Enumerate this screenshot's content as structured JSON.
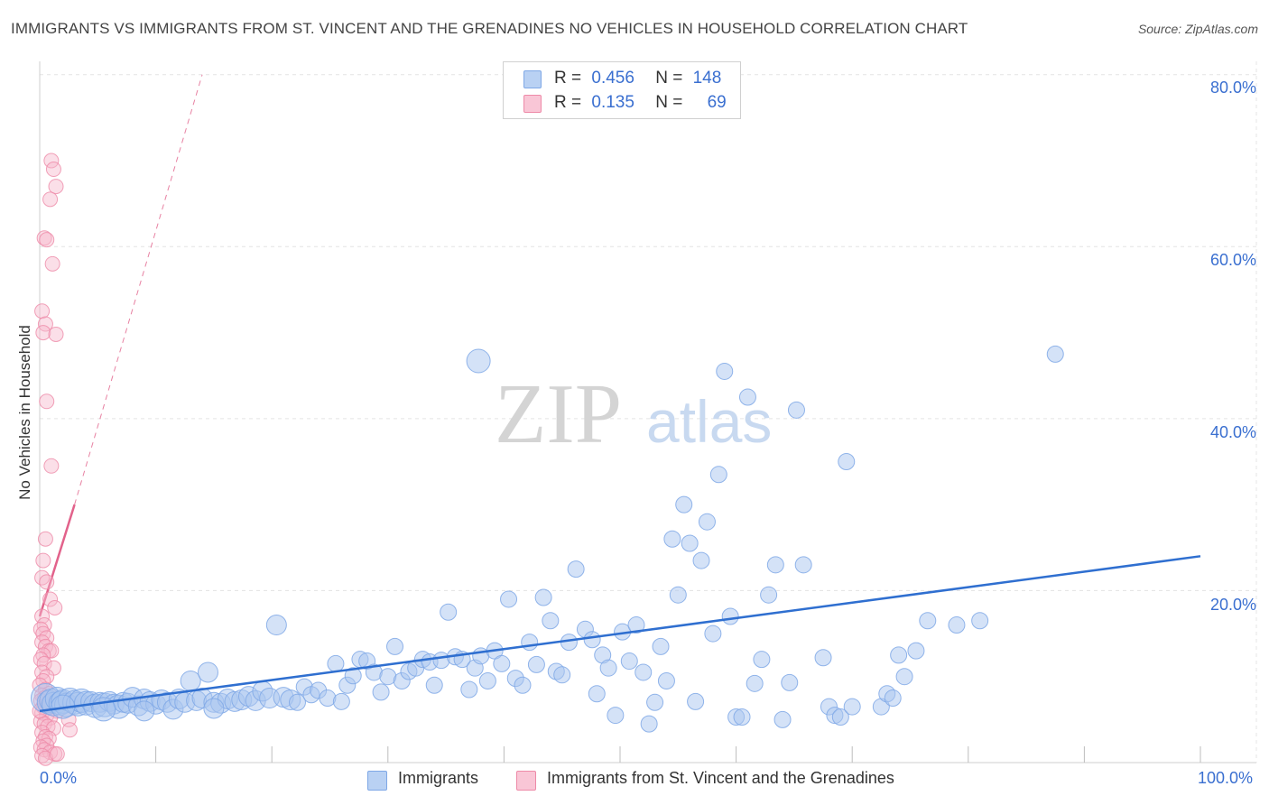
{
  "title": "IMMIGRANTS VS IMMIGRANTS FROM ST. VINCENT AND THE GRENADINES NO VEHICLES IN HOUSEHOLD CORRELATION CHART",
  "source": "Source: ZipAtlas.com",
  "watermark": {
    "zip": "ZIP",
    "atlas": "atlas"
  },
  "legend": {
    "rows": [
      {
        "r_label": "R =",
        "r_value": "0.456",
        "n_label": "N =",
        "n_value": "148"
      },
      {
        "r_label": "R =",
        "r_value": "0.135",
        "n_label": "N =",
        "n_value": "69"
      }
    ]
  },
  "bottom_legend": [
    "Immigrants",
    "Immigrants from St. Vincent and the Grenadines"
  ],
  "colors": {
    "blue_fill": "#a9c6f0",
    "blue_stroke": "#7fa8e6",
    "blue_line": "#2f6fd0",
    "pink_fill": "#f7b9cc",
    "pink_stroke": "#ee8aa8",
    "pink_line": "#e2628b",
    "tick_text": "#3a6fd0",
    "grid": "#e3e3e3"
  },
  "chart_data": {
    "type": "scatter",
    "title": "IMMIGRANTS VS IMMIGRANTS FROM ST. VINCENT AND THE GRENADINES NO VEHICLES IN HOUSEHOLD CORRELATION CHART",
    "xlabel": "",
    "ylabel": "No Vehicles in Household",
    "xlim": [
      0,
      100
    ],
    "ylim": [
      0,
      80
    ],
    "x_tick_labels": [
      "0.0%",
      "100.0%"
    ],
    "y_ticks": [
      20,
      40,
      60,
      80
    ],
    "y_tick_labels": [
      "20.0%",
      "40.0%",
      "60.0%",
      "80.0%"
    ],
    "series": [
      {
        "name": "Immigrants",
        "r": 0.456,
        "n": 148,
        "trend": {
          "x": [
            0,
            100
          ],
          "y": [
            6.0,
            24.0
          ],
          "style": "solid"
        },
        "points": [
          [
            0.5,
            7.5,
            4
          ],
          [
            0.8,
            7.0,
            3
          ],
          [
            1.0,
            7.2,
            3
          ],
          [
            1.2,
            6.8,
            3
          ],
          [
            1.5,
            7.4,
            3
          ],
          [
            1.8,
            6.9,
            3
          ],
          [
            2.0,
            7.1,
            3
          ],
          [
            2.3,
            6.7,
            3
          ],
          [
            2.6,
            7.3,
            3
          ],
          [
            3.0,
            7.0,
            3
          ],
          [
            3.3,
            6.8,
            3
          ],
          [
            3.6,
            7.2,
            3
          ],
          [
            4.0,
            6.9,
            3
          ],
          [
            4.4,
            7.1,
            2
          ],
          [
            4.8,
            6.6,
            3
          ],
          [
            5.2,
            7.0,
            2
          ],
          [
            5.6,
            6.7,
            3
          ],
          [
            6.0,
            7.1,
            2
          ],
          [
            6.4,
            6.8,
            2
          ],
          [
            6.8,
            6.5,
            3
          ],
          [
            7.2,
            7.0,
            2
          ],
          [
            7.6,
            6.9,
            2
          ],
          [
            8.0,
            7.6,
            2
          ],
          [
            8.5,
            6.6,
            2
          ],
          [
            9.0,
            7.4,
            2
          ],
          [
            9.5,
            7.1,
            2
          ],
          [
            10.0,
            6.8,
            2
          ],
          [
            10.5,
            7.3,
            2
          ],
          [
            11.0,
            7.0,
            2
          ],
          [
            11.5,
            6.2,
            2
          ],
          [
            12.0,
            7.4,
            2
          ],
          [
            12.5,
            7.0,
            2
          ],
          [
            13.0,
            9.5,
            2
          ],
          [
            13.5,
            7.2,
            2
          ],
          [
            14.0,
            7.5,
            2
          ],
          [
            14.5,
            10.5,
            2
          ],
          [
            15.0,
            7.0,
            2
          ],
          [
            15.6,
            6.9,
            2
          ],
          [
            16.2,
            7.4,
            2
          ],
          [
            16.8,
            7.1,
            2
          ],
          [
            17.4,
            7.3,
            2
          ],
          [
            18.0,
            7.7,
            2
          ],
          [
            18.6,
            7.2,
            2
          ],
          [
            19.2,
            8.3,
            2
          ],
          [
            19.8,
            7.5,
            2
          ],
          [
            20.4,
            16.0,
            2
          ],
          [
            21.0,
            7.6,
            2
          ],
          [
            21.6,
            7.3,
            2
          ],
          [
            22.2,
            7.0,
            1
          ],
          [
            22.8,
            8.8,
            1
          ],
          [
            23.4,
            7.9,
            1
          ],
          [
            24.0,
            8.4,
            1
          ],
          [
            24.8,
            7.5,
            1
          ],
          [
            25.5,
            11.5,
            1
          ],
          [
            26.0,
            7.1,
            1
          ],
          [
            26.5,
            9.0,
            1
          ],
          [
            27.0,
            10.1,
            1
          ],
          [
            27.6,
            12.0,
            1
          ],
          [
            28.2,
            11.8,
            1
          ],
          [
            28.8,
            10.5,
            1
          ],
          [
            29.4,
            8.2,
            1
          ],
          [
            30.0,
            10.0,
            1
          ],
          [
            30.6,
            13.5,
            1
          ],
          [
            31.2,
            9.5,
            1
          ],
          [
            31.8,
            10.6,
            1
          ],
          [
            32.4,
            11.0,
            1
          ],
          [
            33.0,
            12.0,
            1
          ],
          [
            33.6,
            11.7,
            1
          ],
          [
            34.0,
            9.0,
            1
          ],
          [
            34.6,
            11.9,
            1
          ],
          [
            35.2,
            17.5,
            1
          ],
          [
            35.8,
            12.3,
            1
          ],
          [
            36.4,
            12.0,
            1
          ],
          [
            37.0,
            8.5,
            1
          ],
          [
            37.5,
            11.0,
            1
          ],
          [
            38.0,
            12.4,
            1
          ],
          [
            38.6,
            9.5,
            1
          ],
          [
            39.2,
            13.0,
            1
          ],
          [
            39.8,
            11.5,
            1
          ],
          [
            40.4,
            19.0,
            1
          ],
          [
            41.0,
            9.8,
            1
          ],
          [
            41.6,
            9.0,
            1
          ],
          [
            42.2,
            14.0,
            1
          ],
          [
            42.8,
            11.4,
            1
          ],
          [
            43.4,
            19.2,
            1
          ],
          [
            44.0,
            16.5,
            1
          ],
          [
            44.5,
            10.6,
            1
          ],
          [
            45.0,
            10.2,
            1
          ],
          [
            45.6,
            14.0,
            1
          ],
          [
            46.2,
            22.5,
            1
          ],
          [
            47.0,
            15.5,
            1
          ],
          [
            47.6,
            14.3,
            1
          ],
          [
            48.0,
            8.0,
            1
          ],
          [
            48.5,
            12.5,
            1
          ],
          [
            49.0,
            11.0,
            1
          ],
          [
            49.6,
            5.5,
            1
          ],
          [
            50.2,
            15.2,
            1
          ],
          [
            50.8,
            11.8,
            1
          ],
          [
            51.4,
            16.0,
            1
          ],
          [
            52.0,
            10.5,
            1
          ],
          [
            52.5,
            4.5,
            1
          ],
          [
            53.0,
            7.0,
            1
          ],
          [
            53.5,
            13.5,
            1
          ],
          [
            54.0,
            9.5,
            1
          ],
          [
            54.5,
            26.0,
            1
          ],
          [
            55.0,
            19.5,
            1
          ],
          [
            55.5,
            30.0,
            1
          ],
          [
            56.0,
            25.5,
            1
          ],
          [
            56.5,
            7.1,
            1
          ],
          [
            57.0,
            23.5,
            1
          ],
          [
            57.5,
            28.0,
            1
          ],
          [
            58.0,
            15.0,
            1
          ],
          [
            58.5,
            33.5,
            1
          ],
          [
            59.0,
            45.5,
            1
          ],
          [
            59.5,
            17.0,
            1
          ],
          [
            60.0,
            5.3,
            1
          ],
          [
            60.5,
            5.3,
            1
          ],
          [
            61.0,
            42.5,
            1
          ],
          [
            61.6,
            9.2,
            1
          ],
          [
            62.2,
            12.0,
            1
          ],
          [
            62.8,
            19.5,
            1
          ],
          [
            63.4,
            23.0,
            1
          ],
          [
            64.0,
            5.0,
            1
          ],
          [
            64.6,
            9.3,
            1
          ],
          [
            65.2,
            41.0,
            1
          ],
          [
            65.8,
            23.0,
            1
          ],
          [
            67.5,
            12.2,
            1
          ],
          [
            68.0,
            6.5,
            1
          ],
          [
            68.5,
            5.5,
            1
          ],
          [
            69.0,
            5.3,
            1
          ],
          [
            69.5,
            35.0,
            1
          ],
          [
            70.0,
            6.5,
            1
          ],
          [
            72.5,
            6.5,
            1
          ],
          [
            73.0,
            8.0,
            1
          ],
          [
            73.5,
            7.5,
            1
          ],
          [
            74.0,
            12.5,
            1
          ],
          [
            74.5,
            10.0,
            1
          ],
          [
            75.5,
            13.0,
            1
          ],
          [
            76.5,
            16.5,
            1
          ],
          [
            79.0,
            16.0,
            1
          ],
          [
            81.0,
            16.5,
            1
          ],
          [
            87.5,
            47.5,
            1
          ],
          [
            26.5,
            36.0,
            0
          ],
          [
            37.8,
            46.7,
            3
          ],
          [
            15.0,
            6.3,
            2
          ],
          [
            9.0,
            6.0,
            2
          ],
          [
            5.5,
            6.2,
            3
          ],
          [
            2.0,
            6.5,
            3
          ]
        ]
      },
      {
        "name": "Immigrants from St. Vincent and the Grenadines",
        "r": 0.135,
        "n": 69,
        "trend": {
          "solid": {
            "x": [
              0,
              3.0
            ],
            "y": [
              17.0,
              30.0
            ]
          },
          "dashed": {
            "x": [
              3.0,
              14.0
            ],
            "y": [
              30.0,
              80.0
            ]
          }
        },
        "points": [
          [
            1.0,
            70.0
          ],
          [
            1.2,
            69.0
          ],
          [
            1.4,
            67.0
          ],
          [
            0.9,
            65.5
          ],
          [
            0.4,
            61.0
          ],
          [
            0.6,
            60.8
          ],
          [
            1.1,
            58.0
          ],
          [
            0.2,
            52.5
          ],
          [
            0.5,
            51.0
          ],
          [
            0.3,
            50.0
          ],
          [
            1.4,
            49.8
          ],
          [
            0.6,
            42.0
          ],
          [
            1.0,
            34.5
          ],
          [
            0.5,
            26.0
          ],
          [
            0.3,
            23.5
          ],
          [
            0.2,
            21.5
          ],
          [
            0.6,
            21.0
          ],
          [
            0.9,
            19.0
          ],
          [
            1.3,
            18.0
          ],
          [
            0.2,
            17.0
          ],
          [
            0.4,
            16.0
          ],
          [
            0.1,
            15.5
          ],
          [
            0.3,
            15.0
          ],
          [
            0.6,
            14.5
          ],
          [
            0.2,
            14.0
          ],
          [
            0.5,
            13.5
          ],
          [
            0.8,
            13.0
          ],
          [
            1.0,
            13.0
          ],
          [
            0.3,
            12.5
          ],
          [
            0.1,
            12.0
          ],
          [
            0.4,
            11.5
          ],
          [
            1.2,
            11.0
          ],
          [
            0.2,
            10.5
          ],
          [
            0.6,
            10.0
          ],
          [
            0.3,
            9.5
          ],
          [
            0.0,
            9.0
          ],
          [
            0.5,
            8.5
          ],
          [
            0.8,
            8.0
          ],
          [
            0.2,
            7.8
          ],
          [
            0.4,
            7.5
          ],
          [
            0.1,
            7.2
          ],
          [
            0.7,
            7.0
          ],
          [
            1.0,
            6.8
          ],
          [
            0.3,
            6.5
          ],
          [
            0.5,
            6.2
          ],
          [
            1.5,
            6.0
          ],
          [
            0.2,
            5.8
          ],
          [
            0.6,
            5.5
          ],
          [
            0.9,
            5.2
          ],
          [
            2.5,
            5.0
          ],
          [
            0.1,
            4.8
          ],
          [
            0.4,
            4.5
          ],
          [
            0.7,
            4.2
          ],
          [
            1.2,
            4.0
          ],
          [
            2.6,
            3.8
          ],
          [
            0.2,
            3.5
          ],
          [
            0.5,
            3.0
          ],
          [
            0.8,
            2.8
          ],
          [
            0.3,
            2.5
          ],
          [
            0.6,
            2.0
          ],
          [
            0.1,
            1.8
          ],
          [
            0.4,
            1.5
          ],
          [
            0.9,
            1.2
          ],
          [
            1.3,
            1.0
          ],
          [
            0.2,
            0.8
          ],
          [
            0.5,
            0.5
          ],
          [
            1.5,
            1.0
          ],
          [
            0.8,
            6.5
          ],
          [
            0.0,
            6.0
          ]
        ]
      }
    ]
  }
}
